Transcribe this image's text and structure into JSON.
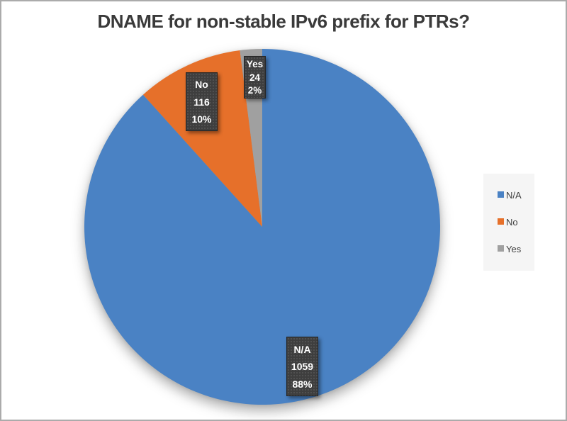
{
  "window": {
    "background": "#ffffff",
    "border_color": "#ababab"
  },
  "chart_data": {
    "type": "pie",
    "title": "DNAME for non-stable IPv6 prefix for PTRs?",
    "categories": [
      "N/A",
      "No",
      "Yes"
    ],
    "values": [
      1059,
      116,
      24
    ],
    "slices": [
      {
        "label": "N/A",
        "value": 1059,
        "percent_label": "88%",
        "color": "#4a82c4"
      },
      {
        "label": "No",
        "value": 116,
        "percent_label": "10%",
        "color": "#e6702a"
      },
      {
        "label": "Yes",
        "value": 24,
        "percent_label": "2%",
        "color": "#a0a0a0"
      }
    ],
    "start_angle_deg": 0,
    "direction": "clockwise",
    "legend_position": "right",
    "data_labels": "category, value, percentage",
    "label_box": {
      "background": "#3e3e3e",
      "text_color": "#ffffff"
    },
    "legend_panel_color": "#f5f5f5",
    "title_color": "#3a3a3a"
  }
}
